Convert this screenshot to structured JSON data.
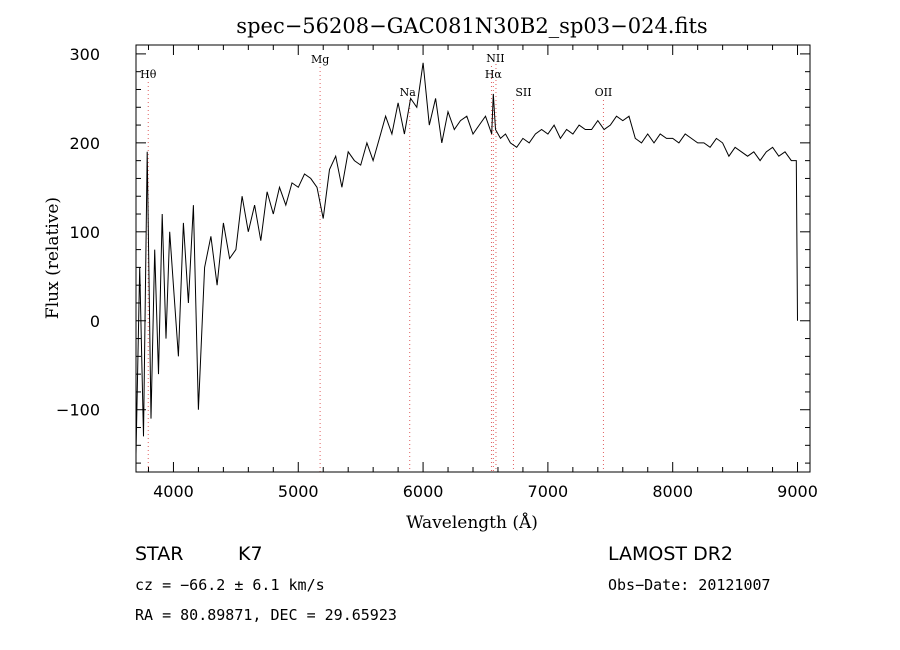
{
  "chart_data": {
    "type": "line",
    "title": "spec−56208−GAC081N30B2_sp03−024.fits",
    "xlabel": "Wavelength (Å)",
    "ylabel": "Flux (relative)",
    "xlim": [
      3700,
      9100
    ],
    "ylim": [
      -170,
      310
    ],
    "xticks": [
      4000,
      5000,
      6000,
      7000,
      8000,
      9000
    ],
    "xtick_labels": [
      "4000",
      "5000",
      "6000",
      "7000",
      "8000",
      "9000"
    ],
    "yticks": [
      -100,
      0,
      100,
      200,
      300
    ],
    "ytick_labels": [
      "−100",
      "0",
      "100",
      "200",
      "300"
    ],
    "grid": false,
    "series": [
      {
        "x": [
          3700,
          3730,
          3760,
          3790,
          3820,
          3850,
          3880,
          3910,
          3940,
          3970,
          4000,
          4040,
          4080,
          4120,
          4160,
          4200,
          4250,
          4300,
          4350,
          4400,
          4450,
          4500,
          4550,
          4600,
          4650,
          4700,
          4750,
          4800,
          4850,
          4900,
          4950,
          5000,
          5050,
          5100,
          5150,
          5200,
          5250,
          5300,
          5350,
          5400,
          5450,
          5500,
          5550,
          5600,
          5650,
          5700,
          5750,
          5800,
          5850,
          5900,
          5950,
          6000,
          6050,
          6100,
          6150,
          6200,
          6250,
          6300,
          6350,
          6400,
          6450,
          6500,
          6550,
          6563,
          6580,
          6620,
          6660,
          6700,
          6750,
          6800,
          6850,
          6900,
          6950,
          7000,
          7050,
          7100,
          7150,
          7200,
          7250,
          7300,
          7350,
          7400,
          7450,
          7500,
          7550,
          7600,
          7650,
          7700,
          7750,
          7800,
          7850,
          7900,
          7950,
          8000,
          8050,
          8100,
          8150,
          8200,
          8250,
          8300,
          8350,
          8400,
          8450,
          8500,
          8550,
          8600,
          8650,
          8700,
          8750,
          8800,
          8850,
          8900,
          8950,
          8990,
          9000
        ],
        "y": [
          -150,
          60,
          -130,
          190,
          -110,
          80,
          -60,
          120,
          -20,
          100,
          40,
          -40,
          110,
          20,
          130,
          -100,
          60,
          95,
          40,
          110,
          70,
          80,
          140,
          100,
          130,
          90,
          145,
          120,
          150,
          130,
          155,
          150,
          165,
          160,
          150,
          115,
          170,
          185,
          150,
          190,
          180,
          175,
          200,
          180,
          205,
          230,
          210,
          245,
          210,
          250,
          240,
          290,
          220,
          250,
          200,
          235,
          215,
          225,
          230,
          210,
          220,
          230,
          210,
          255,
          215,
          205,
          210,
          200,
          195,
          205,
          200,
          210,
          215,
          210,
          220,
          205,
          215,
          210,
          220,
          215,
          215,
          225,
          215,
          220,
          230,
          225,
          230,
          205,
          200,
          210,
          200,
          210,
          205,
          205,
          200,
          210,
          205,
          200,
          200,
          195,
          205,
          200,
          185,
          195,
          190,
          185,
          190,
          180,
          190,
          195,
          185,
          190,
          180,
          180,
          0
        ]
      }
    ],
    "lines": [
      {
        "name": "Hθ",
        "wavelength": 3798
      },
      {
        "name": "Mg",
        "wavelength": 5175
      },
      {
        "name": "Na",
        "wavelength": 5893
      },
      {
        "name": "NII",
        "wavelength": 6548
      },
      {
        "name": "Hα",
        "wavelength": 6563
      },
      {
        "name": "NII",
        "wavelength": 6584
      },
      {
        "name": "SII",
        "wavelength": 6724
      },
      {
        "name": "OII",
        "wavelength": 7445
      }
    ],
    "colors": {
      "spectrum": "#000000",
      "axes": "#000000",
      "line_markers": "#e06060"
    }
  },
  "info": {
    "class": "STAR",
    "subclass": "K7",
    "survey": "LAMOST DR2",
    "cz": "cz = −66.2 ± 6.1 km/s",
    "obs_date": "Obs−Date: 20121007",
    "radec": "RA =  80.89871, DEC =  29.65923"
  }
}
